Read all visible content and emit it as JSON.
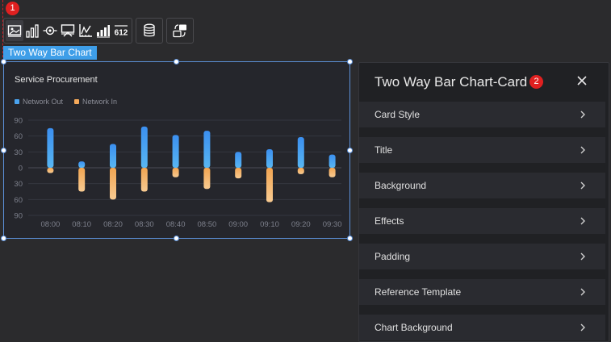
{
  "badges": {
    "toolbar_badge": "1",
    "panel_badge": "2"
  },
  "toolbar": {
    "groups": [
      [
        "image-icon",
        "bar-chart-icon",
        "eye-target-icon",
        "presentation-icon",
        "line-chart-icon",
        "signal-bars-icon",
        "digital-number-icon"
      ],
      [
        "database-icon"
      ],
      [
        "swap-icon"
      ]
    ],
    "digital_number_text": "612"
  },
  "widget": {
    "label": "Two Way Bar Chart"
  },
  "chart": {
    "title": "Service Procurement",
    "legend": [
      {
        "name": "Network Out",
        "color": "#4aa3ee"
      },
      {
        "name": "Network In",
        "color": "#f5a95a"
      }
    ]
  },
  "chart_data": {
    "type": "bar",
    "title": "Service Procurement",
    "categories": [
      "08:00",
      "08:10",
      "08:20",
      "08:30",
      "08:40",
      "08:50",
      "09:00",
      "09:10",
      "09:20",
      "09:30"
    ],
    "series": [
      {
        "name": "Network Out",
        "values": [
          75,
          12,
          45,
          78,
          62,
          70,
          30,
          35,
          58,
          25
        ]
      },
      {
        "name": "Network In",
        "values": [
          -10,
          -45,
          -60,
          -45,
          -18,
          -40,
          -20,
          -65,
          -12,
          -18
        ]
      }
    ],
    "y_ticks": [
      "90",
      "60",
      "30",
      "0",
      "30",
      "60",
      "90"
    ],
    "ylim": [
      -90,
      90
    ],
    "legend_position": "top-left",
    "grid": true,
    "colors": {
      "out_top": "#3b8ff0",
      "out_bottom": "#58b6f2",
      "in_top": "#f1a451",
      "in_bottom": "#f8cb92"
    }
  },
  "panel": {
    "title": "Two Way Bar Chart-Card",
    "sections": [
      "Card Style",
      "Title",
      "Background",
      "Effects",
      "Padding",
      "Reference Template",
      "Chart Background"
    ]
  }
}
